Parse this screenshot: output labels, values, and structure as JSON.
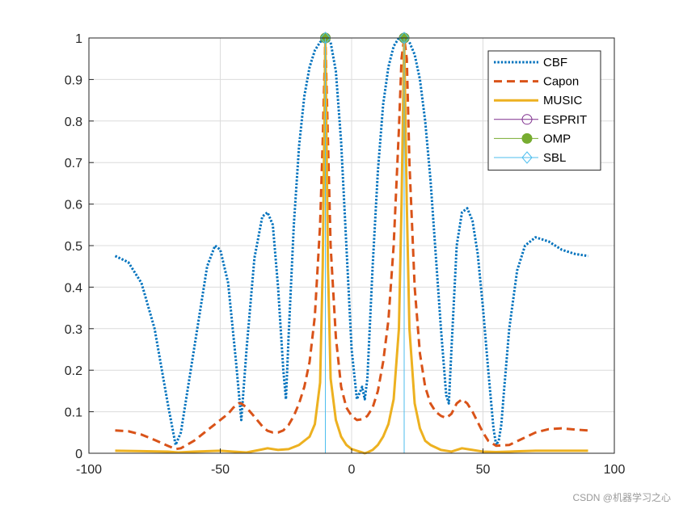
{
  "chart_data": {
    "type": "line",
    "title": "",
    "xlabel": "",
    "ylabel": "",
    "xlim": [
      -100,
      100
    ],
    "ylim": [
      0,
      1
    ],
    "grid": true,
    "legend_position": "top-right",
    "x_ticks": [
      -100,
      -50,
      0,
      50,
      100
    ],
    "x_tick_labels": [
      "-100",
      "-50",
      "0",
      "50",
      "100"
    ],
    "y_ticks": [
      0,
      0.1,
      0.2,
      0.3,
      0.4,
      0.5,
      0.6,
      0.7,
      0.8,
      0.9,
      1
    ],
    "y_tick_labels": [
      "0",
      "0.1",
      "0.2",
      "0.3",
      "0.4",
      "0.5",
      "0.6",
      "0.7",
      "0.8",
      "0.9",
      "1"
    ],
    "series": [
      {
        "name": "CBF",
        "style": "dotted",
        "color": "#0072BD",
        "x": [
          -90,
          -85,
          -80,
          -75,
          -70,
          -67,
          -65,
          -60,
          -55,
          -52,
          -50,
          -47,
          -44,
          -42,
          -40,
          -37,
          -34,
          -32,
          -30,
          -28,
          -26,
          -25,
          -24,
          -22,
          -20,
          -18,
          -16,
          -14,
          -12,
          -10,
          -8,
          -6,
          -4,
          -2,
          0,
          2,
          4,
          5,
          6,
          8,
          10,
          12,
          14,
          16,
          18,
          20,
          22,
          24,
          26,
          28,
          30,
          32,
          34,
          36,
          37,
          38,
          40,
          42,
          44,
          46,
          48,
          50,
          52,
          54,
          55,
          56,
          57,
          58,
          60,
          63,
          66,
          70,
          75,
          80,
          85,
          90
        ],
        "y": [
          0.475,
          0.46,
          0.41,
          0.3,
          0.12,
          0.02,
          0.05,
          0.25,
          0.45,
          0.5,
          0.49,
          0.41,
          0.22,
          0.08,
          0.25,
          0.47,
          0.57,
          0.58,
          0.55,
          0.4,
          0.2,
          0.13,
          0.28,
          0.55,
          0.74,
          0.86,
          0.93,
          0.97,
          0.99,
          1.0,
          0.99,
          0.92,
          0.75,
          0.5,
          0.25,
          0.13,
          0.16,
          0.13,
          0.18,
          0.45,
          0.68,
          0.84,
          0.93,
          0.98,
          1.0,
          1.0,
          0.99,
          0.96,
          0.9,
          0.8,
          0.66,
          0.48,
          0.3,
          0.14,
          0.12,
          0.25,
          0.5,
          0.58,
          0.59,
          0.56,
          0.48,
          0.35,
          0.2,
          0.06,
          0.02,
          0.03,
          0.07,
          0.15,
          0.3,
          0.44,
          0.5,
          0.52,
          0.51,
          0.49,
          0.48,
          0.475
        ]
      },
      {
        "name": "Capon",
        "style": "dashed",
        "color": "#D95319",
        "x": [
          -90,
          -85,
          -80,
          -75,
          -70,
          -67,
          -65,
          -60,
          -55,
          -50,
          -47,
          -45,
          -43,
          -42,
          -40,
          -37,
          -34,
          -32,
          -30,
          -28,
          -26,
          -24,
          -22,
          -20,
          -18,
          -16,
          -14,
          -12,
          -11,
          -10,
          -9,
          -8,
          -6,
          -4,
          -2,
          0,
          2,
          4,
          5,
          6,
          8,
          10,
          12,
          14,
          16,
          18,
          19,
          20,
          21,
          22,
          24,
          26,
          28,
          30,
          32,
          34,
          36,
          38,
          40,
          42,
          44,
          46,
          48,
          50,
          52,
          55,
          60,
          65,
          70,
          75,
          80,
          85,
          90
        ],
        "y": [
          0.055,
          0.053,
          0.045,
          0.032,
          0.018,
          0.01,
          0.012,
          0.03,
          0.055,
          0.08,
          0.095,
          0.11,
          0.12,
          0.12,
          0.11,
          0.088,
          0.065,
          0.054,
          0.05,
          0.05,
          0.055,
          0.068,
          0.09,
          0.12,
          0.16,
          0.22,
          0.33,
          0.55,
          0.75,
          1.0,
          0.75,
          0.5,
          0.28,
          0.16,
          0.11,
          0.09,
          0.08,
          0.082,
          0.085,
          0.09,
          0.11,
          0.15,
          0.22,
          0.32,
          0.5,
          0.78,
          0.95,
          1.0,
          0.95,
          0.7,
          0.4,
          0.24,
          0.16,
          0.12,
          0.1,
          0.09,
          0.085,
          0.095,
          0.12,
          0.13,
          0.12,
          0.1,
          0.075,
          0.05,
          0.03,
          0.018,
          0.02,
          0.035,
          0.05,
          0.058,
          0.06,
          0.057,
          0.055
        ]
      },
      {
        "name": "MUSIC",
        "style": "solid",
        "color": "#EDB120",
        "x": [
          -90,
          -80,
          -70,
          -66,
          -60,
          -50,
          -45,
          -40,
          -35,
          -32,
          -28,
          -24,
          -20,
          -16,
          -14,
          -12,
          -11,
          -10,
          -9,
          -8,
          -6,
          -4,
          -2,
          0,
          2,
          4,
          5,
          6,
          8,
          10,
          12,
          14,
          16,
          18,
          19,
          20,
          21,
          22,
          24,
          26,
          28,
          30,
          34,
          38,
          42,
          46,
          50,
          55,
          60,
          65,
          70,
          80,
          90
        ],
        "y": [
          0.006,
          0.005,
          0.004,
          0.002,
          0.004,
          0.006,
          0.004,
          0.002,
          0.008,
          0.012,
          0.008,
          0.01,
          0.02,
          0.04,
          0.07,
          0.17,
          0.45,
          1.0,
          0.45,
          0.18,
          0.08,
          0.04,
          0.02,
          0.01,
          0.006,
          0.002,
          0.0,
          0.002,
          0.008,
          0.02,
          0.04,
          0.07,
          0.13,
          0.3,
          0.6,
          1.0,
          0.6,
          0.3,
          0.12,
          0.06,
          0.03,
          0.02,
          0.008,
          0.004,
          0.012,
          0.008,
          0.004,
          0.003,
          0.004,
          0.005,
          0.006,
          0.006,
          0.006
        ]
      },
      {
        "name": "ESPRIT",
        "style": "stem",
        "color": "#7E2F8E",
        "marker": "circle-open",
        "x": [
          -10,
          20
        ],
        "y": [
          1,
          1
        ]
      },
      {
        "name": "OMP",
        "style": "stem",
        "color": "#77AC30",
        "marker": "circle-filled",
        "x": [
          -10,
          20
        ],
        "y": [
          1,
          1
        ]
      },
      {
        "name": "SBL",
        "style": "stem",
        "color": "#4DBEEE",
        "marker": "diamond-open",
        "x": [
          -10,
          20
        ],
        "y": [
          1,
          1
        ]
      }
    ]
  },
  "watermark": "CSDN @机器学习之心"
}
